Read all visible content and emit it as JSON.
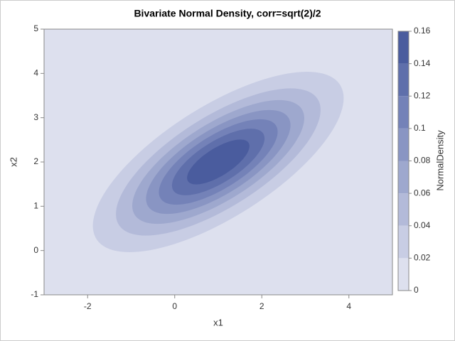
{
  "chart_data": {
    "type": "contour",
    "title": "Bivariate Normal Density, corr=sqrt(2)/2",
    "x_label": "x1",
    "y_label": "x2",
    "colorbar_label": "NormalDensity",
    "mean": [
      1,
      2
    ],
    "std": [
      1.414,
      1
    ],
    "corr": 0.7071,
    "levels": [
      0,
      0.02,
      0.04,
      0.06,
      0.08,
      0.1,
      0.12,
      0.14,
      0.16
    ],
    "colors": [
      "#dde0ee",
      "#c8cde4",
      "#b3bad9",
      "#9ea8ce",
      "#8995c3",
      "#7482b8",
      "#5f6fab",
      "#4a5c9e"
    ],
    "xlim": [
      -3,
      5
    ],
    "xticks": [
      -2,
      0,
      2,
      4
    ],
    "ylim": [
      -1,
      5
    ],
    "yticks": [
      -1,
      0,
      1,
      2,
      3,
      4,
      5
    ]
  }
}
